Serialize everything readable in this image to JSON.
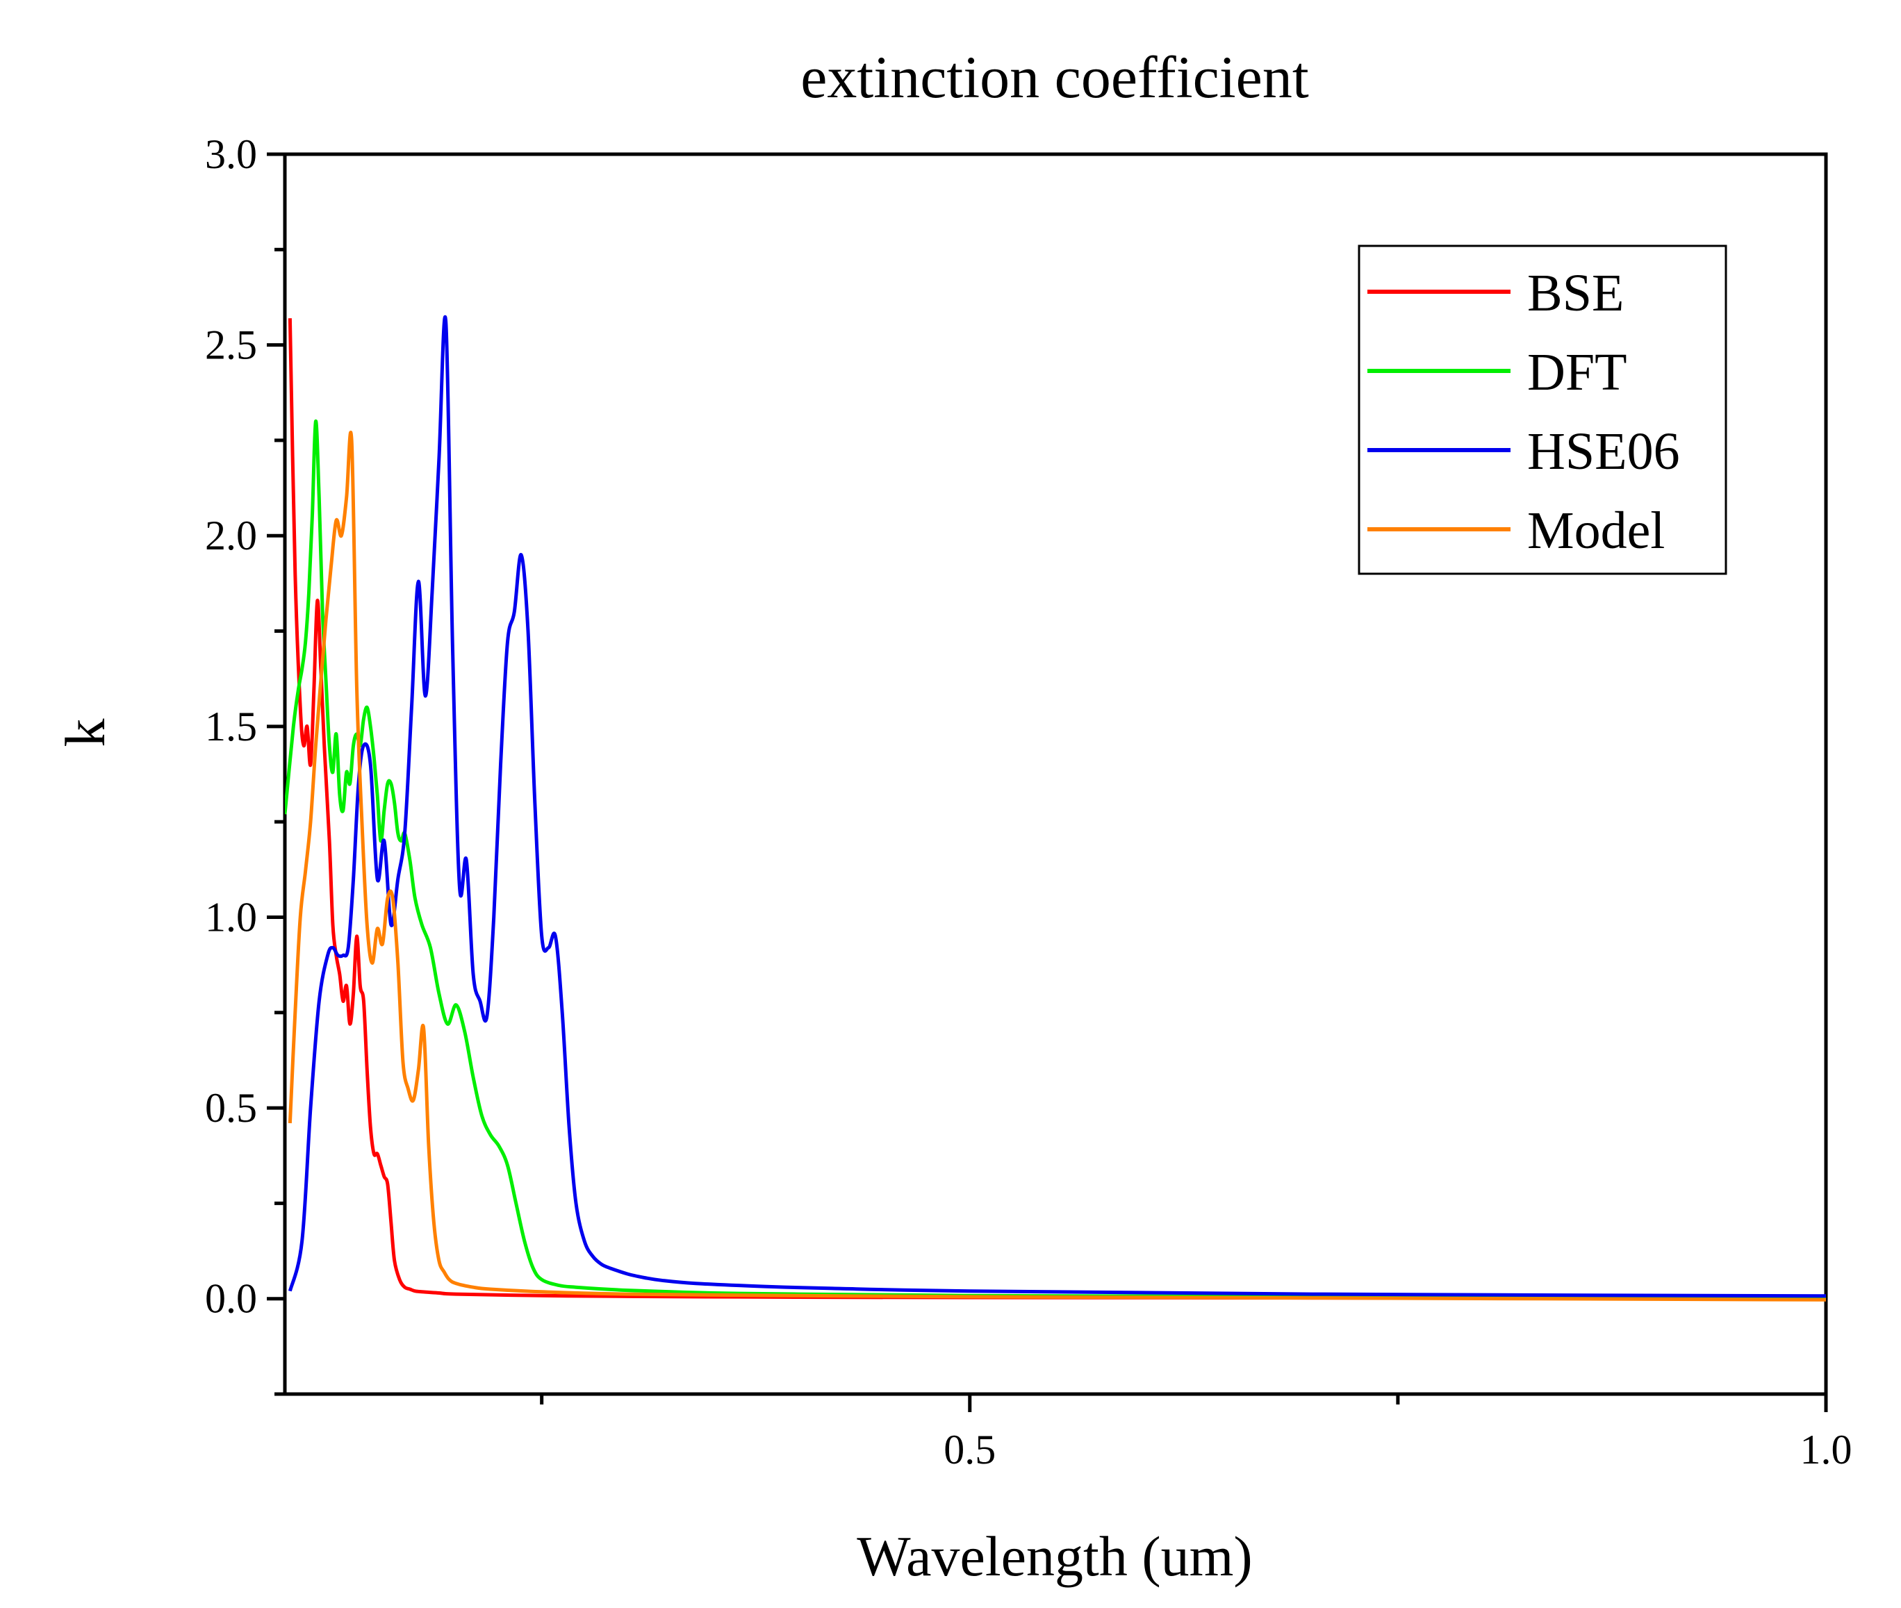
{
  "chart_data": {
    "type": "line",
    "title": "extinction coefficient",
    "xlabel": "Wavelength (um)",
    "ylabel": "k",
    "xlim": [
      0.1,
      1.0
    ],
    "ylim": [
      -0.25,
      3.0
    ],
    "xticks_major": [
      0.5,
      1.0
    ],
    "xtick_labels": [
      "0.5",
      "1.0"
    ],
    "xticks_minor": [
      0.25,
      0.75
    ],
    "yticks_major": [
      0.0,
      0.5,
      1.0,
      1.5,
      2.0,
      2.5,
      3.0
    ],
    "ytick_labels": [
      "0.0",
      "0.5",
      "1.0",
      "1.5",
      "2.0",
      "2.5",
      "3.0"
    ],
    "grid": false,
    "legend_position": "top-right",
    "series": [
      {
        "name": "BSE",
        "color": "#ff0000",
        "x": [
          0.103,
          0.106,
          0.109,
          0.111,
          0.113,
          0.115,
          0.117,
          0.119,
          0.121,
          0.123,
          0.126,
          0.128,
          0.13,
          0.132,
          0.134,
          0.136,
          0.138,
          0.14,
          0.142,
          0.144,
          0.146,
          0.148,
          0.15,
          0.152,
          0.154,
          0.156,
          0.158,
          0.16,
          0.162,
          0.164,
          0.167,
          0.17,
          0.173,
          0.176,
          0.18,
          0.19,
          0.2,
          0.25,
          0.3,
          0.4,
          0.5,
          0.7,
          1.0
        ],
        "y": [
          2.57,
          1.9,
          1.55,
          1.45,
          1.5,
          1.4,
          1.6,
          1.83,
          1.65,
          1.45,
          1.2,
          0.98,
          0.9,
          0.85,
          0.78,
          0.82,
          0.72,
          0.8,
          0.95,
          0.82,
          0.78,
          0.6,
          0.45,
          0.38,
          0.38,
          0.35,
          0.32,
          0.3,
          0.2,
          0.1,
          0.05,
          0.03,
          0.025,
          0.02,
          0.018,
          0.015,
          0.012,
          0.008,
          0.006,
          0.004,
          0.003,
          0.002,
          0.001
        ]
      },
      {
        "name": "DFT",
        "color": "#00ee00",
        "x": [
          0.1,
          0.105,
          0.108,
          0.11,
          0.112,
          0.114,
          0.116,
          0.118,
          0.12,
          0.122,
          0.124,
          0.126,
          0.128,
          0.13,
          0.132,
          0.134,
          0.136,
          0.138,
          0.14,
          0.142,
          0.144,
          0.146,
          0.148,
          0.15,
          0.152,
          0.154,
          0.156,
          0.158,
          0.16,
          0.162,
          0.164,
          0.166,
          0.168,
          0.17,
          0.173,
          0.176,
          0.18,
          0.185,
          0.19,
          0.195,
          0.2,
          0.205,
          0.21,
          0.215,
          0.22,
          0.225,
          0.23,
          0.235,
          0.24,
          0.245,
          0.25,
          0.26,
          0.27,
          0.3,
          0.35,
          0.4,
          0.5,
          0.7,
          1.0
        ],
        "y": [
          1.27,
          1.5,
          1.6,
          1.65,
          1.72,
          1.85,
          2.05,
          2.3,
          2.1,
          1.8,
          1.62,
          1.45,
          1.38,
          1.48,
          1.32,
          1.28,
          1.38,
          1.35,
          1.45,
          1.48,
          1.45,
          1.52,
          1.55,
          1.5,
          1.42,
          1.32,
          1.2,
          1.28,
          1.35,
          1.35,
          1.3,
          1.22,
          1.2,
          1.22,
          1.15,
          1.05,
          0.98,
          0.92,
          0.8,
          0.72,
          0.77,
          0.7,
          0.58,
          0.48,
          0.43,
          0.4,
          0.35,
          0.25,
          0.15,
          0.08,
          0.05,
          0.035,
          0.03,
          0.022,
          0.015,
          0.012,
          0.008,
          0.005,
          0.004
        ]
      },
      {
        "name": "HSE06",
        "color": "#0000ee",
        "x": [
          0.103,
          0.11,
          0.115,
          0.12,
          0.125,
          0.128,
          0.131,
          0.134,
          0.137,
          0.14,
          0.143,
          0.146,
          0.15,
          0.154,
          0.158,
          0.162,
          0.166,
          0.17,
          0.174,
          0.178,
          0.182,
          0.186,
          0.19,
          0.194,
          0.198,
          0.202,
          0.206,
          0.21,
          0.214,
          0.218,
          0.222,
          0.226,
          0.23,
          0.234,
          0.238,
          0.242,
          0.246,
          0.25,
          0.254,
          0.258,
          0.262,
          0.266,
          0.27,
          0.275,
          0.28,
          0.285,
          0.29,
          0.3,
          0.31,
          0.32,
          0.34,
          0.38,
          0.42,
          0.5,
          0.7,
          1.0
        ],
        "y": [
          0.02,
          0.15,
          0.5,
          0.78,
          0.9,
          0.92,
          0.9,
          0.9,
          0.92,
          1.1,
          1.35,
          1.45,
          1.4,
          1.1,
          1.2,
          0.98,
          1.1,
          1.22,
          1.55,
          1.88,
          1.58,
          1.85,
          2.2,
          2.56,
          1.7,
          1.08,
          1.15,
          0.85,
          0.78,
          0.74,
          1.0,
          1.4,
          1.72,
          1.8,
          1.95,
          1.75,
          1.3,
          0.95,
          0.92,
          0.95,
          0.75,
          0.45,
          0.25,
          0.15,
          0.11,
          0.09,
          0.08,
          0.065,
          0.055,
          0.048,
          0.04,
          0.032,
          0.027,
          0.02,
          0.012,
          0.007
        ]
      },
      {
        "name": "Model",
        "color": "#ff8000",
        "x": [
          0.103,
          0.106,
          0.109,
          0.112,
          0.115,
          0.118,
          0.121,
          0.124,
          0.127,
          0.13,
          0.133,
          0.136,
          0.139,
          0.142,
          0.145,
          0.148,
          0.151,
          0.154,
          0.157,
          0.16,
          0.163,
          0.166,
          0.169,
          0.172,
          0.175,
          0.178,
          0.181,
          0.184,
          0.187,
          0.19,
          0.193,
          0.196,
          0.2,
          0.21,
          0.22,
          0.25,
          0.3,
          0.4,
          0.5,
          0.7,
          1.0
        ],
        "y": [
          0.46,
          0.75,
          1.0,
          1.12,
          1.25,
          1.45,
          1.62,
          1.78,
          1.92,
          2.04,
          2.0,
          2.1,
          2.25,
          1.6,
          1.25,
          0.98,
          0.88,
          0.97,
          0.93,
          1.05,
          1.05,
          0.88,
          0.62,
          0.55,
          0.52,
          0.6,
          0.71,
          0.4,
          0.2,
          0.1,
          0.07,
          0.05,
          0.04,
          0.03,
          0.025,
          0.018,
          0.012,
          0.008,
          0.005,
          0.002,
          -0.003
        ]
      }
    ]
  }
}
